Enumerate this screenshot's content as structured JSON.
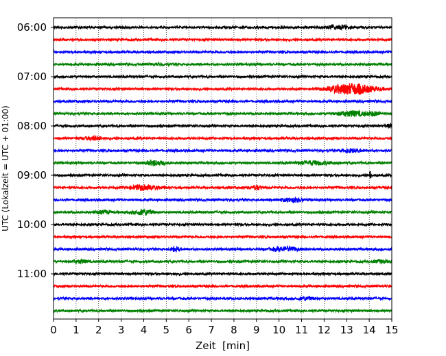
{
  "chart_data": {
    "type": "line",
    "title": "",
    "xlabel": "Zeit  [min]",
    "ylabel": "UTC (Lokalzeit = UTC + 01:00)",
    "xlim": [
      0,
      15
    ],
    "x_ticks": [
      "0",
      "1",
      "2",
      "3",
      "4",
      "5",
      "6",
      "7",
      "8",
      "9",
      "10",
      "11",
      "12",
      "13",
      "14",
      "15"
    ],
    "vertical_grid": true,
    "grid_style": "dotted",
    "start_time": "06:00",
    "trace_interval_min": 15,
    "trace_count": 24,
    "y_tick_labels": [
      "06:00",
      "07:00",
      "08:00",
      "09:00",
      "10:00",
      "11:00"
    ],
    "colors": [
      "#000000",
      "#ff0000",
      "#0000ff",
      "#008000"
    ],
    "events": [
      {
        "trace": 0,
        "minute": 12.6,
        "amplitude": 1.2,
        "width": 0.5
      },
      {
        "trace": 3,
        "minute": 4.7,
        "amplitude": 0.6,
        "width": 0.3
      },
      {
        "trace": 5,
        "minute": 13.2,
        "amplitude": 3.4,
        "width": 1.0
      },
      {
        "trace": 7,
        "minute": 13.2,
        "amplitude": 1.6,
        "width": 0.6
      },
      {
        "trace": 7,
        "minute": 14.2,
        "amplitude": 1.2,
        "width": 0.3
      },
      {
        "trace": 8,
        "minute": 14.9,
        "amplitude": 1.0,
        "width": 0.2
      },
      {
        "trace": 9,
        "minute": 1.8,
        "amplitude": 1.2,
        "width": 0.4
      },
      {
        "trace": 10,
        "minute": 13.2,
        "amplitude": 1.0,
        "width": 0.4
      },
      {
        "trace": 11,
        "minute": 4.5,
        "amplitude": 1.5,
        "width": 0.4
      },
      {
        "trace": 11,
        "minute": 11.5,
        "amplitude": 1.1,
        "width": 0.8
      },
      {
        "trace": 12,
        "minute": 14.05,
        "amplitude": 5.0,
        "width": 0.03
      },
      {
        "trace": 13,
        "minute": 4.0,
        "amplitude": 1.6,
        "width": 0.6
      },
      {
        "trace": 13,
        "minute": 9.0,
        "amplitude": 1.4,
        "width": 0.2
      },
      {
        "trace": 14,
        "minute": 10.6,
        "amplitude": 1.2,
        "width": 0.5
      },
      {
        "trace": 15,
        "minute": 4.0,
        "amplitude": 1.7,
        "width": 0.4
      },
      {
        "trace": 15,
        "minute": 2.2,
        "amplitude": 0.8,
        "width": 0.4
      },
      {
        "trace": 18,
        "minute": 5.4,
        "amplitude": 1.4,
        "width": 0.2
      },
      {
        "trace": 18,
        "minute": 10.3,
        "amplitude": 1.3,
        "width": 0.6
      },
      {
        "trace": 19,
        "minute": 1.2,
        "amplitude": 0.9,
        "width": 0.3
      },
      {
        "trace": 19,
        "minute": 14.5,
        "amplitude": 0.8,
        "width": 0.3
      },
      {
        "trace": 22,
        "minute": 11.2,
        "amplitude": 1.0,
        "width": 0.3
      }
    ]
  }
}
